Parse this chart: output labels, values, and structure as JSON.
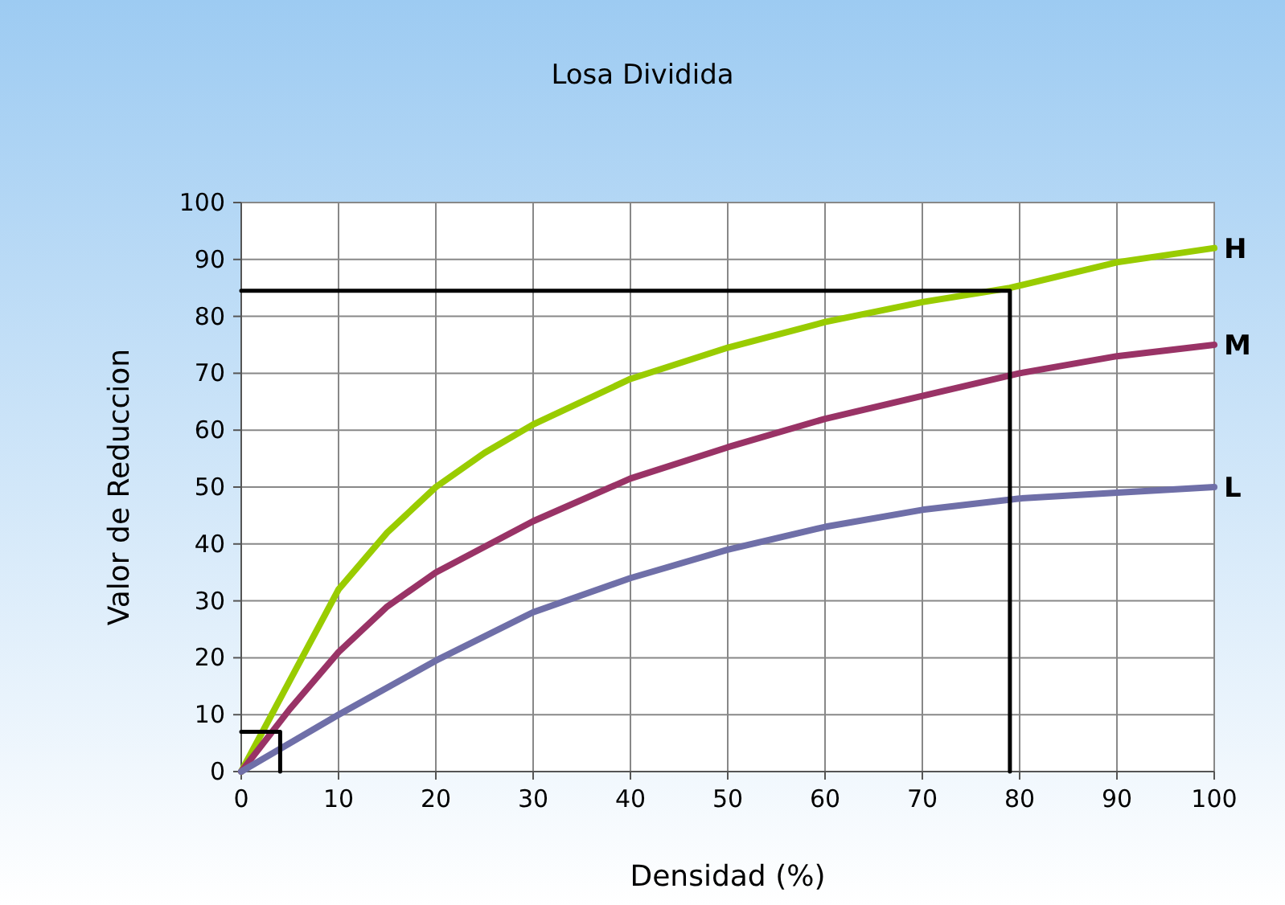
{
  "chart_data": {
    "type": "line",
    "title": "Losa Dividida",
    "xlabel": "Densidad (%)",
    "ylabel": "Valor de Reduccion",
    "xlim": [
      0,
      100
    ],
    "ylim": [
      0,
      100
    ],
    "xticks": [
      0,
      10,
      20,
      30,
      40,
      50,
      60,
      70,
      80,
      90,
      100
    ],
    "yticks": [
      0,
      10,
      20,
      30,
      40,
      50,
      60,
      70,
      80,
      90,
      100
    ],
    "grid": true,
    "marker": "none",
    "line_style": "solid",
    "series": [
      {
        "name": "H",
        "color": "#99cc00",
        "x": [
          0,
          5,
          10,
          15,
          20,
          25,
          30,
          40,
          50,
          60,
          70,
          79,
          90,
          100
        ],
        "values": [
          0,
          16,
          32,
          42,
          50,
          56,
          61,
          69,
          74.5,
          79,
          82.5,
          85,
          89.5,
          92
        ]
      },
      {
        "name": "M",
        "color": "#993366",
        "x": [
          0,
          5,
          10,
          15,
          20,
          30,
          40,
          50,
          60,
          70,
          80,
          90,
          100
        ],
        "values": [
          0,
          11,
          21,
          29,
          35,
          44,
          51.5,
          57,
          62,
          66,
          70,
          73,
          75
        ]
      },
      {
        "name": "L",
        "color": "#6f6fa8",
        "x": [
          0,
          10,
          20,
          30,
          40,
          50,
          60,
          70,
          80,
          90,
          100
        ],
        "values": [
          0,
          10,
          19.5,
          28,
          34,
          39,
          43,
          46,
          48,
          49,
          50
        ]
      },
      {
        "color": "#000000",
        "x": [
          0,
          79,
          79
        ],
        "values": [
          84.5,
          84.5,
          0
        ]
      },
      {
        "color": "#000000",
        "x": [
          0,
          4,
          4
        ],
        "values": [
          7,
          7,
          0
        ]
      }
    ]
  }
}
